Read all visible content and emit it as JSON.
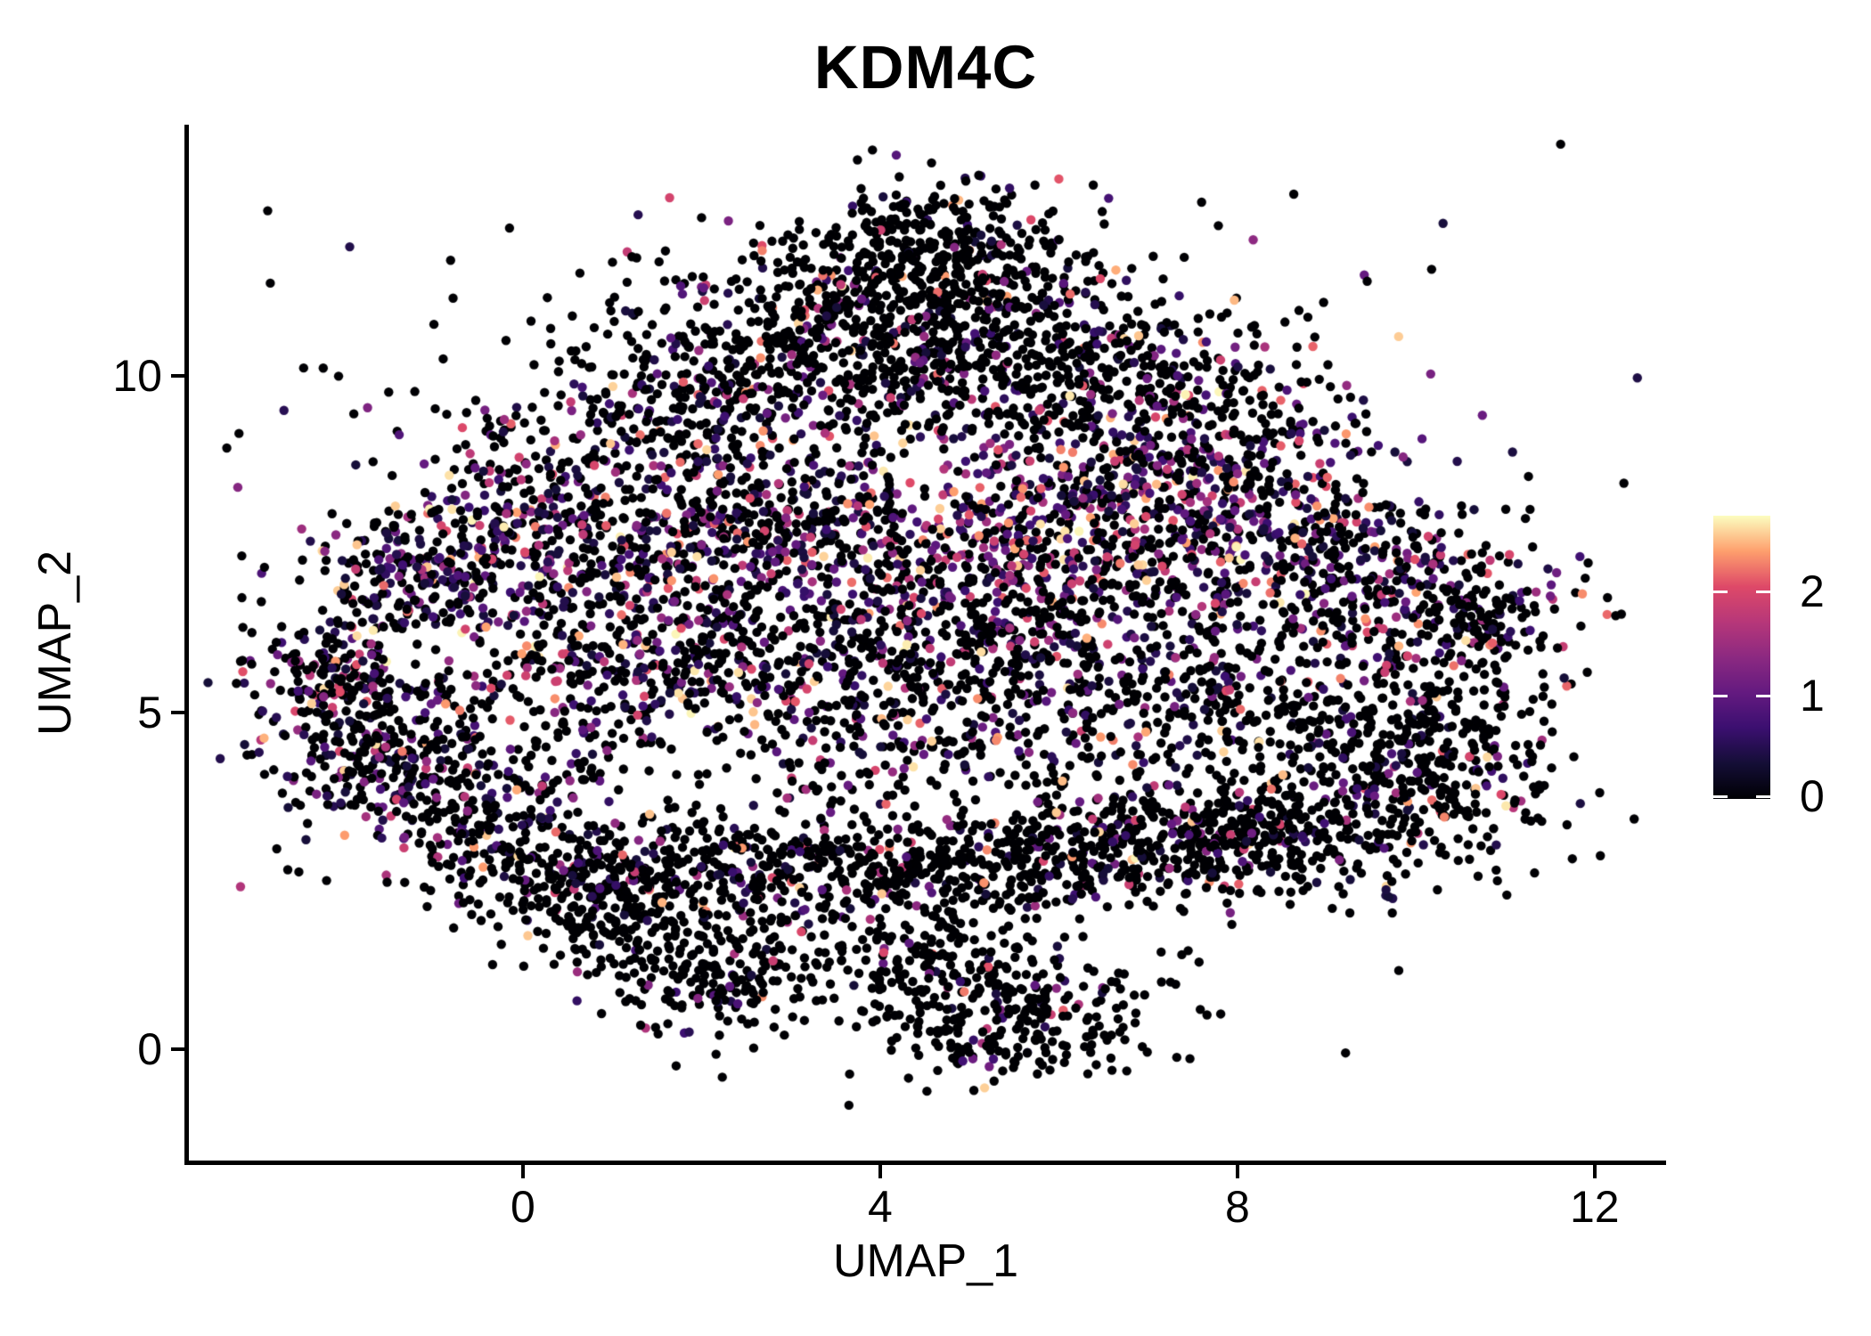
{
  "chart_data": {
    "type": "scatter",
    "title": "KDM4C",
    "xlabel": "UMAP_1",
    "ylabel": "UMAP_2",
    "x_ticks": [
      0,
      4,
      8,
      12
    ],
    "y_ticks": [
      0,
      5,
      10
    ],
    "xlim": [
      -3.76,
      12.78
    ],
    "ylim": [
      -1.68,
      13.73
    ],
    "grid": false,
    "background": "#ffffff",
    "point_radius_px": 5.2,
    "seed": 42,
    "colorbar": {
      "position": "right",
      "ticks": [
        0,
        1,
        2
      ],
      "vmax": 2.72,
      "colormap": "magma",
      "stops": [
        [
          0.0,
          "#000004"
        ],
        [
          0.125,
          "#140e36"
        ],
        [
          0.25,
          "#3b0f70"
        ],
        [
          0.375,
          "#641a80"
        ],
        [
          0.5,
          "#8c2981"
        ],
        [
          0.625,
          "#b73779"
        ],
        [
          0.75,
          "#de4968"
        ],
        [
          0.875,
          "#fe9f6d"
        ],
        [
          1.0,
          "#fcfdbf"
        ]
      ]
    },
    "expression": {
      "zero_value": 0,
      "colored_value_min": 0.35,
      "colored_value_max": 2.7,
      "colored_power": 2.2,
      "hot_value_min": 0.5,
      "hot_power": 1.2
    },
    "clusters_format": [
      "center_x",
      "center_y",
      "sigma_x",
      "sigma_y",
      "n_points",
      "colored_fraction",
      "hot"
    ],
    "clusters": [
      [
        4.6,
        12.1,
        0.7,
        0.45,
        170,
        0.12,
        0
      ],
      [
        4.4,
        11.4,
        1.25,
        0.5,
        290,
        0.15,
        0
      ],
      [
        4.4,
        10.65,
        1.8,
        0.55,
        400,
        0.15,
        0
      ],
      [
        3.0,
        9.95,
        1.05,
        0.5,
        230,
        0.2,
        0
      ],
      [
        6.0,
        9.95,
        1.15,
        0.5,
        230,
        0.25,
        0
      ],
      [
        1.7,
        9.2,
        0.9,
        0.55,
        210,
        0.3,
        0
      ],
      [
        7.4,
        9.3,
        1.0,
        0.6,
        230,
        0.35,
        0
      ],
      [
        0.0,
        7.6,
        0.8,
        0.65,
        270,
        0.55,
        0
      ],
      [
        -1.3,
        7.05,
        0.55,
        0.5,
        170,
        0.5,
        0
      ],
      [
        1.8,
        7.6,
        0.9,
        0.6,
        230,
        0.5,
        0
      ],
      [
        3.3,
        7.9,
        0.8,
        0.5,
        190,
        0.45,
        0
      ],
      [
        5.6,
        7.6,
        0.95,
        0.7,
        270,
        0.6,
        1
      ],
      [
        7.0,
        8.3,
        1.0,
        0.6,
        270,
        0.55,
        0
      ],
      [
        8.6,
        7.6,
        1.0,
        0.8,
        310,
        0.55,
        0
      ],
      [
        9.9,
        6.9,
        0.8,
        0.6,
        210,
        0.45,
        0
      ],
      [
        10.9,
        6.35,
        0.5,
        0.5,
        120,
        0.3,
        0
      ],
      [
        2.2,
        6.3,
        1.0,
        0.6,
        190,
        0.4,
        0
      ],
      [
        4.3,
        6.4,
        1.0,
        0.65,
        200,
        0.4,
        0
      ],
      [
        6.3,
        6.5,
        1.0,
        0.7,
        200,
        0.35,
        0
      ],
      [
        1.1,
        5.6,
        0.8,
        0.6,
        170,
        0.4,
        0
      ],
      [
        3.2,
        5.2,
        1.1,
        0.7,
        210,
        0.35,
        0
      ],
      [
        5.5,
        5.0,
        1.2,
        0.8,
        230,
        0.3,
        0
      ],
      [
        7.5,
        5.3,
        1.0,
        0.8,
        210,
        0.3,
        0
      ],
      [
        -1.9,
        4.9,
        0.55,
        0.7,
        180,
        0.35,
        0
      ],
      [
        -1.2,
        4.2,
        0.6,
        0.6,
        170,
        0.3,
        0
      ],
      [
        -0.3,
        3.4,
        0.7,
        0.5,
        170,
        0.25,
        0
      ],
      [
        -2.3,
        5.6,
        0.4,
        0.45,
        90,
        0.35,
        0
      ],
      [
        9.4,
        4.9,
        0.8,
        0.7,
        180,
        0.25,
        0
      ],
      [
        10.4,
        4.6,
        0.6,
        0.6,
        150,
        0.2,
        0
      ],
      [
        9.7,
        3.6,
        0.9,
        0.5,
        200,
        0.15,
        0
      ],
      [
        8.5,
        3.1,
        0.8,
        0.45,
        180,
        0.15,
        0
      ],
      [
        0.7,
        2.5,
        0.9,
        0.4,
        200,
        0.15,
        0
      ],
      [
        2.4,
        2.7,
        1.0,
        0.4,
        230,
        0.15,
        0
      ],
      [
        4.2,
        2.6,
        1.0,
        0.45,
        230,
        0.18,
        0
      ],
      [
        6.0,
        2.9,
        1.0,
        0.45,
        230,
        0.18,
        0
      ],
      [
        7.3,
        3.1,
        0.8,
        0.4,
        180,
        0.18,
        0
      ],
      [
        2.3,
        1.2,
        0.75,
        0.5,
        210,
        0.1,
        0
      ],
      [
        1.2,
        1.8,
        0.5,
        0.4,
        110,
        0.1,
        0
      ],
      [
        5.4,
        0.5,
        0.85,
        0.5,
        290,
        0.08,
        0
      ],
      [
        4.6,
        1.4,
        0.6,
        0.4,
        110,
        0.1,
        0
      ],
      [
        4.0,
        8.8,
        3.4,
        1.9,
        380,
        0.35,
        0
      ],
      [
        4.0,
        4.2,
        3.4,
        1.5,
        300,
        0.25,
        0
      ],
      [
        -0.5,
        5.8,
        1.2,
        1.1,
        150,
        0.35,
        0
      ],
      [
        9.65,
        2.33,
        0.07,
        0.07,
        4,
        0.9,
        0
      ]
    ]
  }
}
